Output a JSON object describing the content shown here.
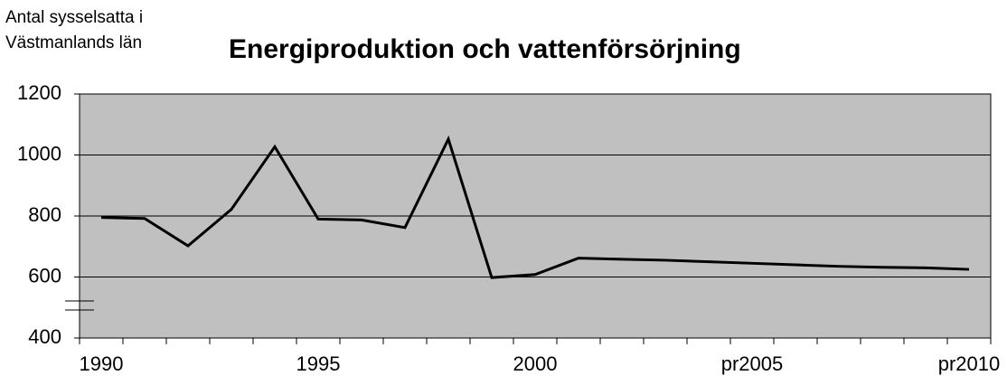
{
  "chart_data": {
    "type": "line",
    "title": "Energiproduktion och vattenförsörjning",
    "ylabel": [
      "Antal sysselsatta i",
      "Västmanlands län"
    ],
    "categories": [
      "1990",
      null,
      null,
      null,
      null,
      "1995",
      null,
      null,
      null,
      null,
      "2000",
      null,
      null,
      null,
      null,
      "pr2005",
      null,
      null,
      null,
      null,
      "pr2010"
    ],
    "series": [
      {
        "name": "Energiproduktion och vattenförsörjning",
        "color": "#000000",
        "values": [
          795,
          792,
          702,
          822,
          1027,
          790,
          787,
          762,
          1052,
          598,
          608,
          662,
          658,
          655,
          650,
          645,
          640,
          635,
          632,
          630,
          625
        ]
      }
    ],
    "ylim": [
      400,
      1200
    ],
    "yticks": [
      400,
      600,
      800,
      1000,
      1200
    ],
    "grid": true
  }
}
